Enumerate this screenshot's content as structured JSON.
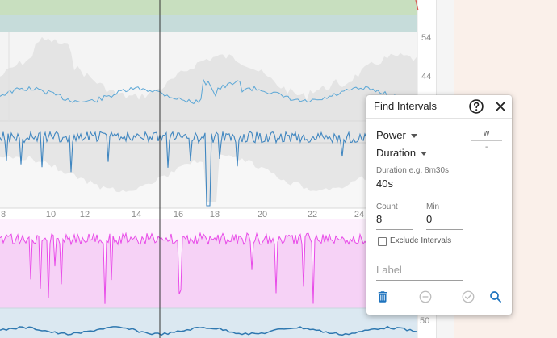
{
  "chart": {
    "axis_right_labels": [
      "54",
      "44"
    ],
    "axis_bottom_labels": [
      "8",
      "10",
      "12",
      "14",
      "16",
      "18",
      "20",
      "22",
      "24"
    ],
    "bottom_partial_label": "50"
  },
  "colors": {
    "zone_green": "#c8dfbf",
    "zone_teal": "#c6dcda",
    "blue_line": "#5ba7d6",
    "power_line": "#e84ae8",
    "power_fill": "#fbe3fb",
    "action_blue": "#1e73be",
    "action_grey": "#bdbdbd"
  },
  "panel": {
    "title": "Find Intervals",
    "help_icon": "help-circle-icon",
    "close_icon": "close-icon",
    "metric_dropdown": "Power",
    "mode_dropdown": "Duration",
    "units": "w",
    "units_sub": "-",
    "duration_label": "Duration e.g. 8m30s",
    "duration_value": "40s",
    "count_label": "Count",
    "count_value": "8",
    "min_label": "Min",
    "min_value": "0",
    "exclude_label": "Exclude Intervals",
    "exclude_checked": false,
    "label_placeholder": "Label",
    "actions": [
      "delete-icon",
      "remove-circle-icon",
      "check-circle-icon",
      "search-icon"
    ]
  }
}
